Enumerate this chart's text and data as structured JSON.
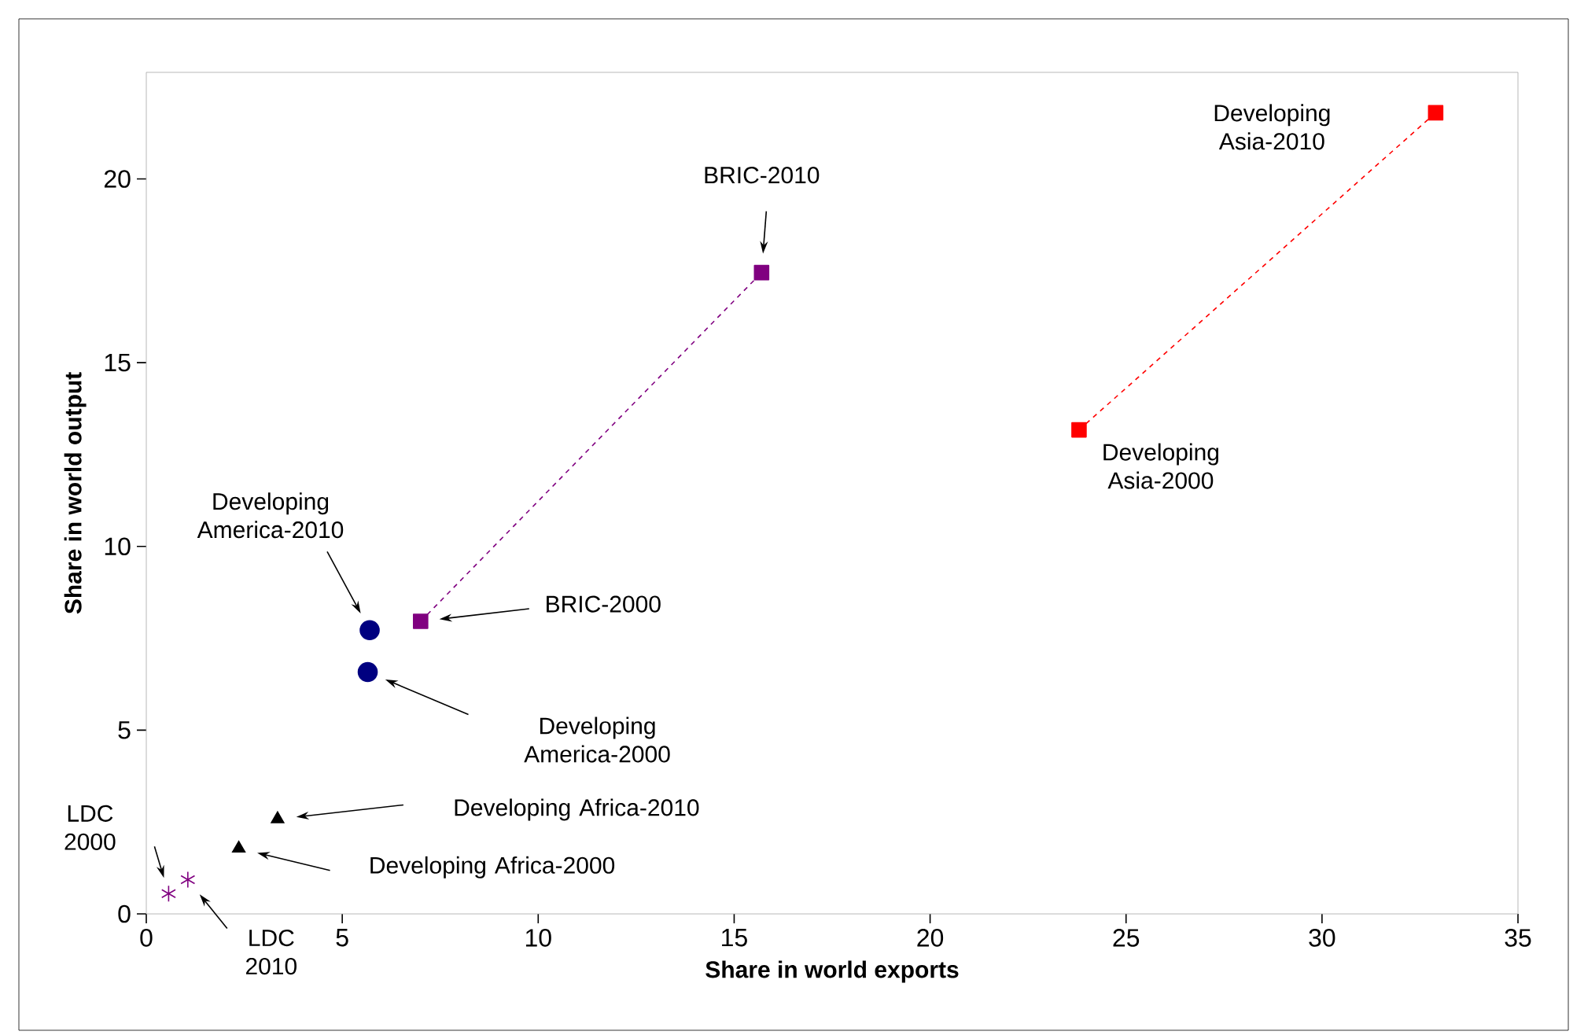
{
  "chart_data": {
    "type": "scatter",
    "xlabel": "Share in world exports",
    "ylabel": "Share in world output",
    "xlim": [
      0,
      35
    ],
    "ylim": [
      0,
      22.9
    ],
    "xticks": [
      0,
      5,
      10,
      15,
      20,
      25,
      30,
      35
    ],
    "yticks": [
      0,
      5,
      10,
      15,
      20
    ],
    "grid": false,
    "legend": false,
    "series": [
      {
        "x": [
          0.57,
          1.06
        ],
        "values": [
          0.55,
          0.93
        ],
        "color": "#800080",
        "marker": "cross"
      },
      {
        "x": [
          2.36,
          3.35
        ],
        "values": [
          1.78,
          2.58
        ],
        "color": "#000000",
        "marker": "triangle"
      },
      {
        "x": [
          5.65,
          5.7
        ],
        "values": [
          6.58,
          7.72
        ],
        "color": "#000080",
        "marker": "circle"
      },
      {
        "type": "line",
        "x": [
          7.0,
          15.7
        ],
        "values": [
          7.96,
          17.45
        ],
        "color": "#800080",
        "marker": "square",
        "line_style": "dashed"
      },
      {
        "type": "line",
        "x": [
          23.8,
          32.9
        ],
        "values": [
          13.17,
          21.8
        ],
        "color": "#ff0000",
        "marker": "square",
        "line_style": "dashed"
      }
    ],
    "annotations": [
      "LDC 2000",
      "LDC 2010",
      "Developing Africa-2000",
      "Developing Africa-2010",
      "Developing America-2000",
      "Developing America-2010",
      "BRIC-2000",
      "BRIC-2010",
      "Developing Asia-2000",
      "Developing Asia-2010"
    ]
  }
}
